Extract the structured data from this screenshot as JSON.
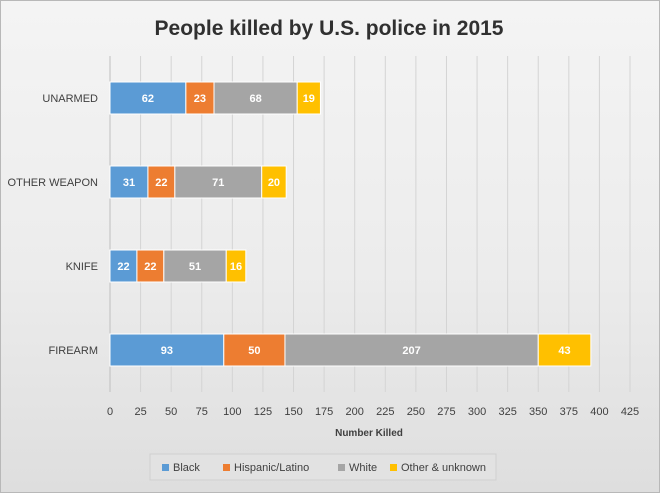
{
  "chart_data": {
    "type": "bar",
    "orientation": "horizontal",
    "stacked": true,
    "title": "People killed by U.S. police in 2015",
    "xlabel": "Number Killed",
    "ylabel": "",
    "xlim": [
      0,
      425
    ],
    "x_ticks": [
      "0",
      "25",
      "50",
      "75",
      "100",
      "125",
      "150",
      "175",
      "200",
      "225",
      "250",
      "275",
      "300",
      "325",
      "350",
      "375",
      "400",
      "425"
    ],
    "x_tick_step": 25,
    "grid": true,
    "legend_position": "bottom",
    "categories": [
      "UNARMED",
      "OTHER WEAPON",
      "KNIFE",
      "FIREARM"
    ],
    "series": [
      {
        "name": "Black",
        "color": "#5b9bd5",
        "values": [
          62,
          31,
          22,
          93
        ]
      },
      {
        "name": "Hispanic/Latino",
        "color": "#ed7d31",
        "values": [
          23,
          22,
          22,
          50
        ]
      },
      {
        "name": "White",
        "color": "#a5a5a5",
        "values": [
          68,
          71,
          51,
          207
        ]
      },
      {
        "name": "Other & unknown",
        "color": "#ffc000",
        "values": [
          19,
          20,
          16,
          43
        ]
      }
    ]
  }
}
